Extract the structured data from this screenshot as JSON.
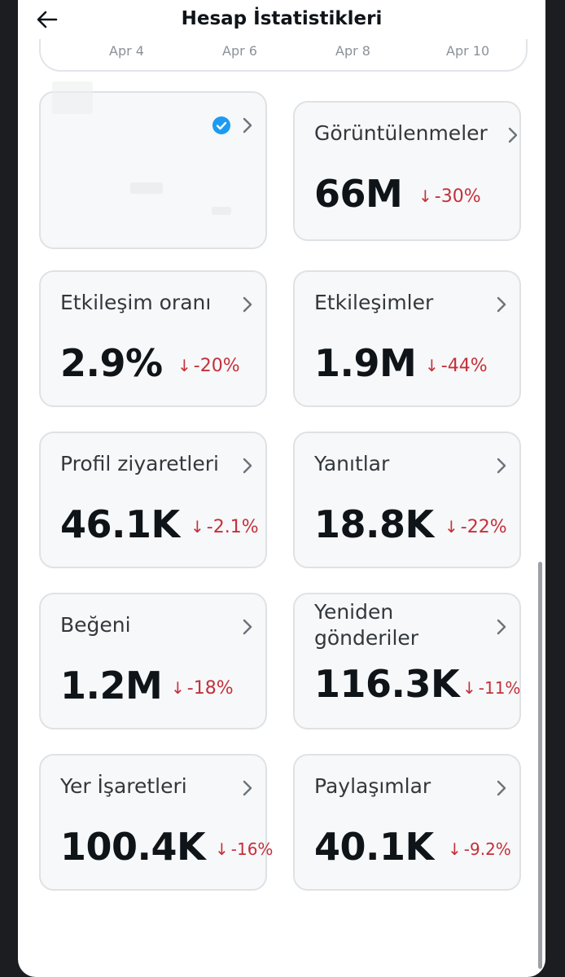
{
  "header": {
    "title": "Hesap İstatistikleri"
  },
  "dates": [
    "Apr 4",
    "Apr 6",
    "Apr 8",
    "Apr 10"
  ],
  "colors": {
    "negative": "#c4303a",
    "verified": "#1d9bf0",
    "card_bg": "#f7f8f9"
  },
  "metrics": [
    {
      "label": "Görüntülenmeler",
      "value": "66M",
      "delta": "-30%"
    },
    {
      "label": "Etkileşim oranı",
      "value": "2.9%",
      "delta": "-20%"
    },
    {
      "label": "Etkileşimler",
      "value": "1.9M",
      "delta": "-44%"
    },
    {
      "label": "Profil ziyaretleri",
      "value": "46.1K",
      "delta": "-2.1%"
    },
    {
      "label": "Yanıtlar",
      "value": "18.8K",
      "delta": "-22%"
    },
    {
      "label": "Beğeni",
      "value": "1.2M",
      "delta": "-18%"
    },
    {
      "label": "Yeniden gönderiler",
      "value": "116.3K",
      "delta": "-11%"
    },
    {
      "label": "Yer İşaretleri",
      "value": "100.4K",
      "delta": "-16%"
    },
    {
      "label": "Paylaşımlar",
      "value": "40.1K",
      "delta": "-9.2%"
    }
  ],
  "icons": {
    "back": "arrow-left-icon",
    "chevron": "chevron-right-icon",
    "verified": "verified-badge-icon",
    "trend": "arrow-down-icon"
  }
}
